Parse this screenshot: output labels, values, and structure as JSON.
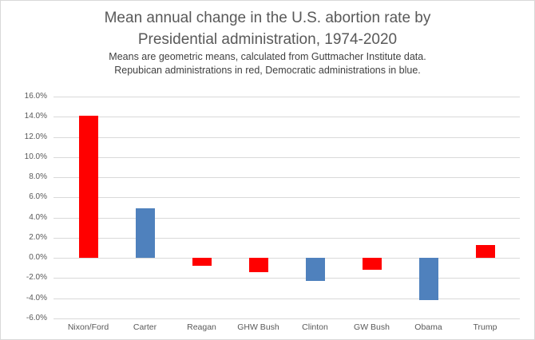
{
  "chart": {
    "title_lines": [
      "Mean annual change in the U.S. abortion rate by",
      "Presidential administration, 1974-2020"
    ],
    "subtitle_lines": [
      "Means are geometric means, calculated from Guttmacher Institute data.",
      "Repubican administrations in red, Democratic administrations in blue."
    ]
  },
  "chart_data": {
    "type": "bar",
    "title": "Mean annual change in the U.S. abortion rate by Presidential administration, 1974-2020",
    "subtitle": "Means are geometric means, calculated from Guttmacher Institute data. Repubican administrations in red, Democratic administrations in blue.",
    "categories": [
      "Nixon/Ford",
      "Carter",
      "Reagan",
      "GHW Bush",
      "Clinton",
      "GW Bush",
      "Obama",
      "Trump"
    ],
    "values": [
      14.1,
      4.9,
      -0.8,
      -1.4,
      -2.3,
      -1.2,
      -4.2,
      1.3
    ],
    "parties": [
      "Republican",
      "Democratic",
      "Republican",
      "Republican",
      "Democratic",
      "Republican",
      "Democratic",
      "Republican"
    ],
    "party_colors": {
      "Republican": "#ff0000",
      "Democratic": "#4f81bd"
    },
    "unit": "percent",
    "ylim": [
      -6,
      16
    ],
    "ytick_step": 2,
    "yticks": [
      "16.0%",
      "14.0%",
      "12.0%",
      "10.0%",
      "8.0%",
      "6.0%",
      "4.0%",
      "2.0%",
      "0.0%",
      "-2.0%",
      "-4.0%",
      "-6.0%"
    ],
    "grid": true,
    "gridline_color": "#d9d9d9",
    "legend": "none",
    "text_colors": {
      "title": "#595959",
      "subtitle": "#404040",
      "axis": "#595959"
    }
  }
}
